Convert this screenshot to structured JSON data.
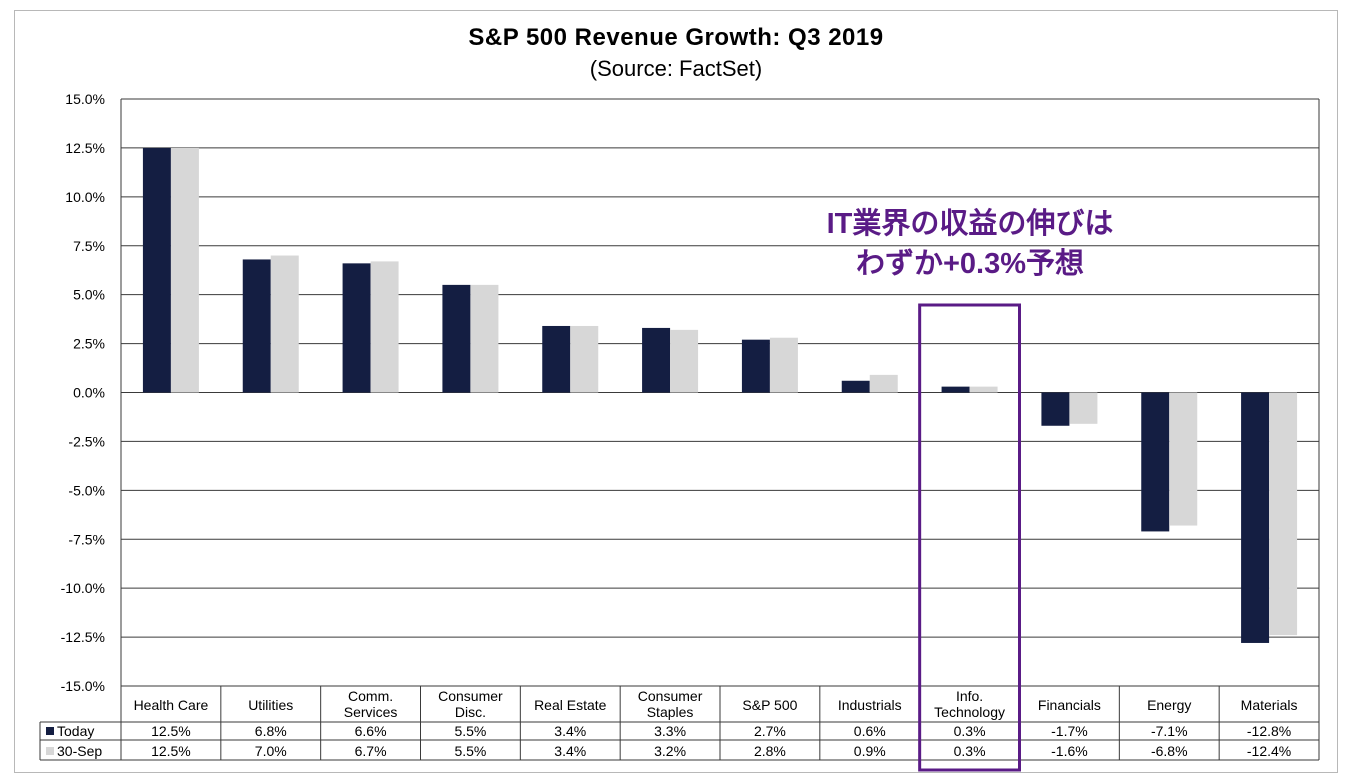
{
  "chart_data": {
    "type": "bar",
    "title": "S&P 500 Revenue Growth: Q3 2019",
    "subtitle": "(Source: FactSet)",
    "categories": [
      [
        "Health Care"
      ],
      [
        "Utilities"
      ],
      [
        "Comm.",
        "Services"
      ],
      [
        "Consumer",
        "Disc."
      ],
      [
        "Real Estate"
      ],
      [
        "Consumer",
        "Staples"
      ],
      [
        "S&P 500"
      ],
      [
        "Industrials"
      ],
      [
        "Info.",
        "Technology"
      ],
      [
        "Financials"
      ],
      [
        "Energy"
      ],
      [
        "Materials"
      ]
    ],
    "series": [
      {
        "name": "Today",
        "color": "#141e42",
        "values": [
          12.5,
          6.8,
          6.6,
          5.5,
          3.4,
          3.3,
          2.7,
          0.6,
          0.3,
          -1.7,
          -7.1,
          -12.8
        ],
        "labels": [
          "12.5%",
          "6.8%",
          "6.6%",
          "5.5%",
          "3.4%",
          "3.3%",
          "2.7%",
          "0.6%",
          "0.3%",
          "-1.7%",
          "-7.1%",
          "-12.8%"
        ]
      },
      {
        "name": "30-Sep",
        "color": "#d7d7d7",
        "values": [
          12.5,
          7.0,
          6.7,
          5.5,
          3.4,
          3.2,
          2.8,
          0.9,
          0.3,
          -1.6,
          -6.8,
          -12.4
        ],
        "labels": [
          "12.5%",
          "7.0%",
          "6.7%",
          "5.5%",
          "3.4%",
          "3.2%",
          "2.8%",
          "0.9%",
          "0.3%",
          "-1.6%",
          "-6.8%",
          "-12.4%"
        ]
      }
    ],
    "ylim": [
      -15,
      15
    ],
    "yticks": [
      15,
      12.5,
      10,
      7.5,
      5,
      2.5,
      0,
      -2.5,
      -5,
      -7.5,
      -10,
      -12.5,
      -15
    ],
    "ytick_labels": [
      "15.0%",
      "12.5%",
      "10.0%",
      "7.5%",
      "5.0%",
      "2.5%",
      "0.0%",
      "-2.5%",
      "-5.0%",
      "-7.5%",
      "-10.0%",
      "-12.5%",
      "-15.0%"
    ],
    "grid": true,
    "legend": "data-table",
    "highlight_category": 8,
    "highlight_color": "#5a1b86",
    "annotation": [
      "IT業界の収益の伸びは",
      "わずか+0.3%予想"
    ],
    "annotation_color": "#5a1b86"
  }
}
